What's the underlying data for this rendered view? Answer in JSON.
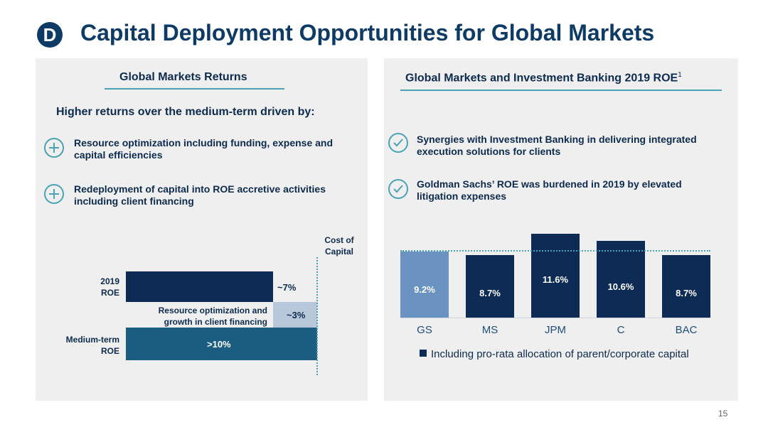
{
  "header": {
    "badge": "D",
    "title": "Capital Deployment Opportunities for Global Markets"
  },
  "left_panel": {
    "title": "Global Markets Returns",
    "subheading": "Higher returns over the medium-term driven by:",
    "bullets": [
      {
        "line1": "Resource optimization including funding, expense  and",
        "line2": "capital efficiencies"
      },
      {
        "line1": "Redeployment of capital into ROE accretive activities",
        "line2": "including client financing"
      }
    ],
    "cost_of_capital": {
      "line1": "Cost of",
      "line2": "Capital"
    },
    "roe_label": {
      "line1": "2019",
      "line2": "ROE"
    },
    "roe_value": "~7%",
    "opt_label": {
      "line1": "Resource optimization and",
      "line2": "growth in client financing"
    },
    "opt_value": "~3%",
    "med_label": {
      "line1": "Medium-term",
      "line2": "ROE"
    },
    "med_value": ">10%"
  },
  "right_panel": {
    "title": "Global Markets and Investment Banking 2019 ROE",
    "title_sup": "1",
    "bullets": [
      {
        "line1": "Synergies with Investment Banking in delivering integrated",
        "line2": "execution solutions for clients"
      },
      {
        "line1": "Goldman Sachs’ ROE was burdened in 2019 by elevated",
        "line2": "litigation expenses"
      }
    ],
    "legend": "Including pro-rata allocation of parent/corporate capital"
  },
  "chart_data": {
    "type": "bar",
    "categories": [
      "GS",
      "MS",
      "JPM",
      "C",
      "BAC"
    ],
    "values": [
      9.2,
      8.7,
      11.6,
      10.6,
      8.7
    ],
    "labels": [
      "9.2%",
      "8.7%",
      "11.6%",
      "10.6%",
      "8.7%"
    ],
    "colors": [
      "#6a93c2",
      "#0d2b55",
      "#0d2b55",
      "#0d2b55",
      "#0d2b55"
    ],
    "reference_value": 9.2,
    "ylim": [
      0,
      12.5
    ],
    "title": "",
    "xlabel": "",
    "ylabel": ""
  },
  "footer": {
    "page": "15"
  }
}
